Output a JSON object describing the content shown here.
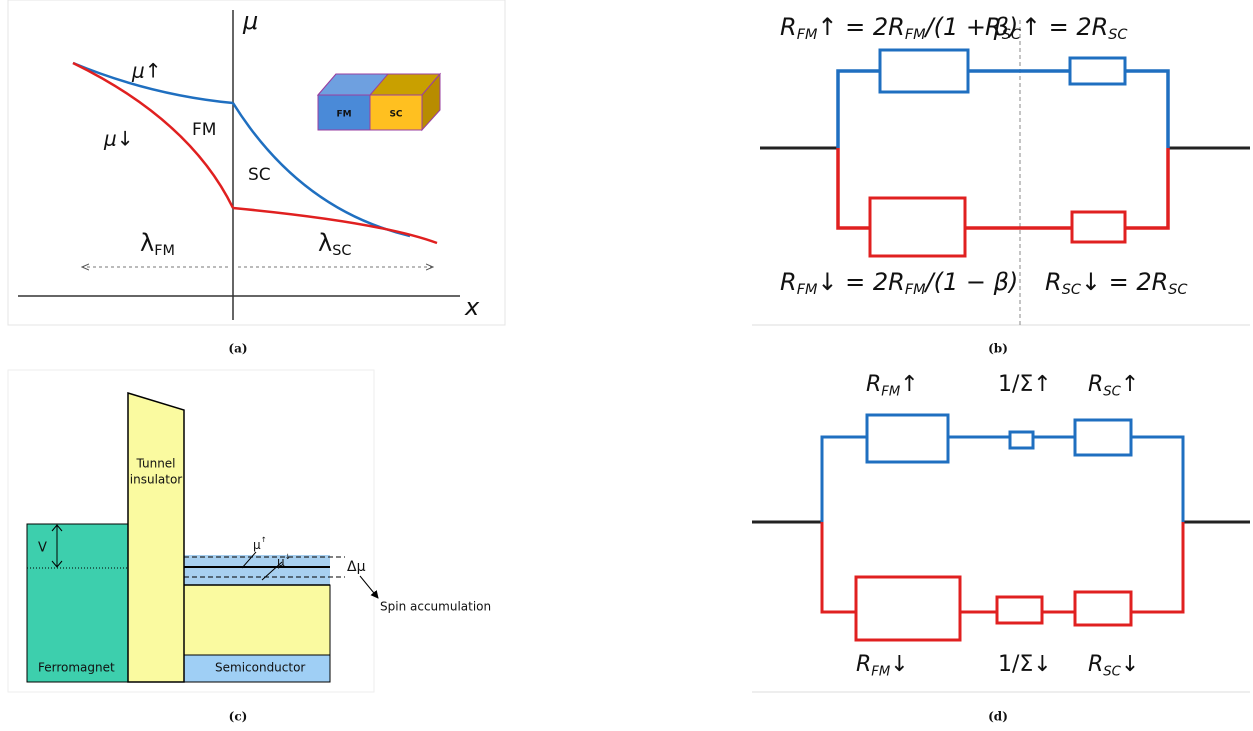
{
  "panel_a": {
    "caption": "(a)",
    "axis_y": "μ",
    "axis_x": "x",
    "mu_up": "μ↑",
    "mu_down": "μ↓",
    "region_fm": "FM",
    "region_sc": "SC",
    "lambda_fm": {
      "text": "λ",
      "sub": "FM"
    },
    "lambda_sc": {
      "text": "λ",
      "sub": "SC"
    },
    "inset_fm": "FM",
    "inset_sc": "SC"
  },
  "panel_b": {
    "caption": "(b)",
    "top_left": [
      {
        "text": "R",
        "sub": "FM"
      },
      {
        "text": "↑ = 2R",
        "sub": "FM"
      },
      {
        "text": "/(1 + β)"
      }
    ],
    "top_right": [
      {
        "text": "R",
        "sub": "SC"
      },
      {
        "text": "↑ = 2R",
        "sub": "SC"
      }
    ],
    "bottom_left": [
      {
        "text": "R",
        "sub": "FM"
      },
      {
        "text": "↓ = 2R",
        "sub": "FM"
      },
      {
        "text": "/(1 − β)"
      }
    ],
    "bottom_right": [
      {
        "text": "R",
        "sub": "SC"
      },
      {
        "text": "↓ = 2R",
        "sub": "SC"
      }
    ]
  },
  "panel_c": {
    "caption": "(c)",
    "insulator": [
      "Tunnel",
      "insulator"
    ],
    "voltage": "V",
    "mu_up": {
      "text": "μ",
      "sup": "↑"
    },
    "mu_down": {
      "text": "μ",
      "sup": "↓"
    },
    "delta_mu": "Δμ",
    "spin_accumulation": "Spin accumulation",
    "ferromagnet": "Ferromagnet",
    "semiconductor": "Semiconductor"
  },
  "panel_d": {
    "caption": "(d)",
    "top": [
      [
        {
          "text": "R",
          "sub": "FM"
        },
        {
          "text": "↑"
        }
      ],
      [
        {
          "text": "1/Σ↑"
        }
      ],
      [
        {
          "text": "R",
          "sub": "SC"
        },
        {
          "text": "↑"
        }
      ]
    ],
    "bottom": [
      [
        {
          "text": "R",
          "sub": "FM"
        },
        {
          "text": "↓"
        }
      ],
      [
        {
          "text": "1/Σ↓"
        }
      ],
      [
        {
          "text": "R",
          "sub": "SC"
        },
        {
          "text": "↓"
        }
      ]
    ]
  }
}
